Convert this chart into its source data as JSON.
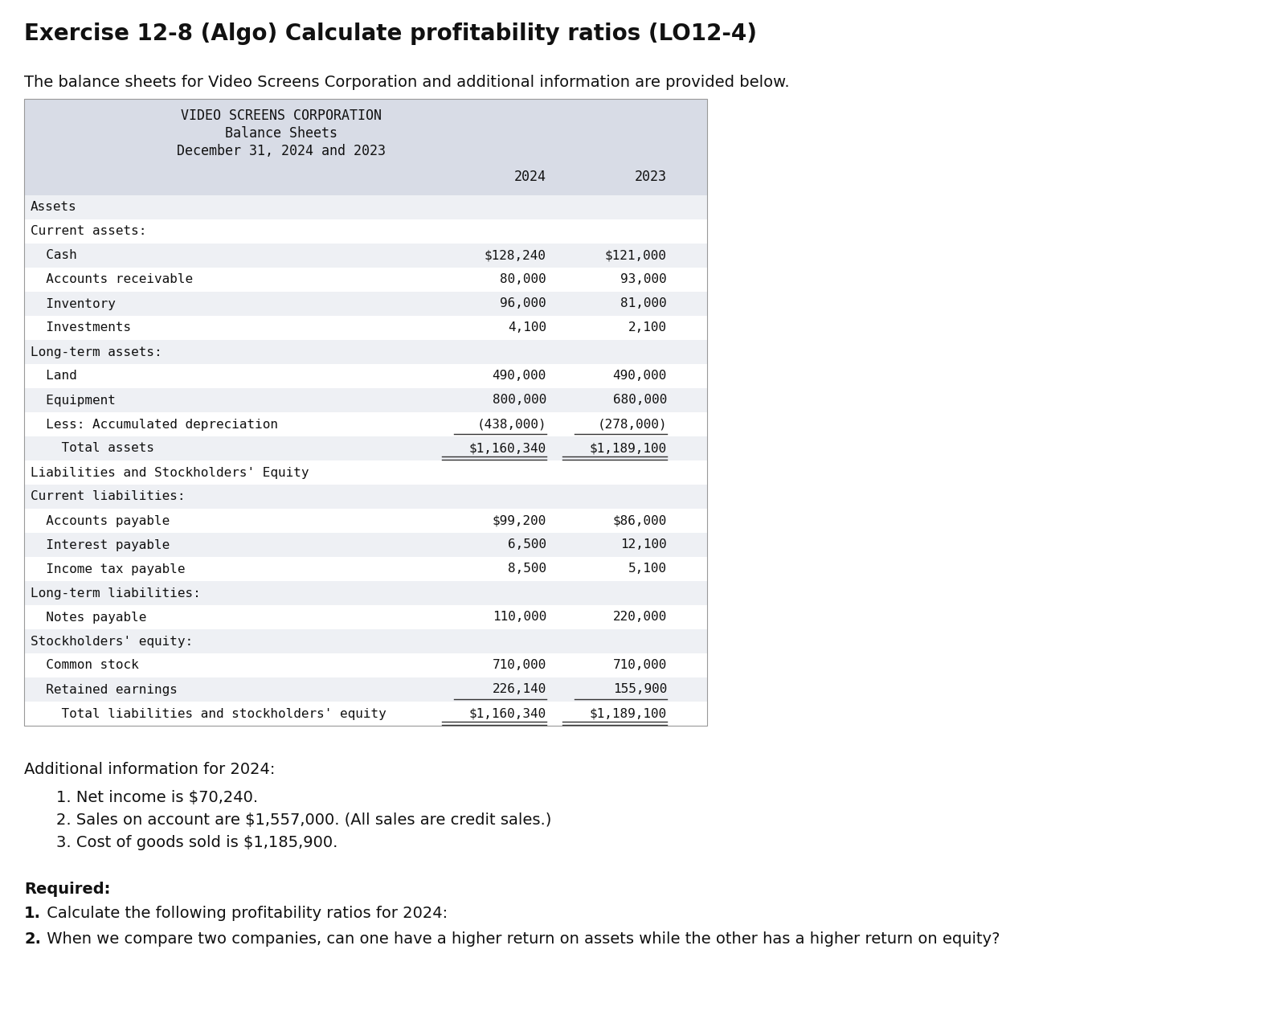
{
  "title": "Exercise 12-8 (Algo) Calculate profitability ratios (LO12-4)",
  "subtitle": "The balance sheets for Video Screens Corporation and additional information are provided below.",
  "table_header_line1": "VIDEO SCREENS CORPORATION",
  "table_header_line2": "Balance Sheets",
  "table_header_line3": "December 31, 2024 and 2023",
  "background_color": "#ffffff",
  "table_bg": "#d8dce6",
  "row_bg_alt": "#eef0f4",
  "row_bg_white": "#ffffff",
  "rows": [
    {
      "label": "Assets",
      "val2024": "",
      "val2023": "",
      "bg": "#eef0f4",
      "underline": false,
      "double_underline": false
    },
    {
      "label": "Current assets:",
      "val2024": "",
      "val2023": "",
      "bg": "#ffffff",
      "underline": false,
      "double_underline": false
    },
    {
      "label": "  Cash",
      "val2024": "$128,240",
      "val2023": "$121,000",
      "bg": "#eef0f4",
      "underline": false,
      "double_underline": false
    },
    {
      "label": "  Accounts receivable",
      "val2024": "80,000",
      "val2023": "93,000",
      "bg": "#ffffff",
      "underline": false,
      "double_underline": false
    },
    {
      "label": "  Inventory",
      "val2024": "96,000",
      "val2023": "81,000",
      "bg": "#eef0f4",
      "underline": false,
      "double_underline": false
    },
    {
      "label": "  Investments",
      "val2024": "4,100",
      "val2023": "2,100",
      "bg": "#ffffff",
      "underline": false,
      "double_underline": false
    },
    {
      "label": "Long-term assets:",
      "val2024": "",
      "val2023": "",
      "bg": "#eef0f4",
      "underline": false,
      "double_underline": false
    },
    {
      "label": "  Land",
      "val2024": "490,000",
      "val2023": "490,000",
      "bg": "#ffffff",
      "underline": false,
      "double_underline": false
    },
    {
      "label": "  Equipment",
      "val2024": "800,000",
      "val2023": "680,000",
      "bg": "#eef0f4",
      "underline": false,
      "double_underline": false
    },
    {
      "label": "  Less: Accumulated depreciation",
      "val2024": "(438,000)",
      "val2023": "(278,000)",
      "bg": "#ffffff",
      "underline": true,
      "double_underline": false
    },
    {
      "label": "    Total assets",
      "val2024": "$1,160,340",
      "val2023": "$1,189,100",
      "bg": "#eef0f4",
      "underline": false,
      "double_underline": true
    },
    {
      "label": "Liabilities and Stockholders' Equity",
      "val2024": "",
      "val2023": "",
      "bg": "#ffffff",
      "underline": false,
      "double_underline": false
    },
    {
      "label": "Current liabilities:",
      "val2024": "",
      "val2023": "",
      "bg": "#eef0f4",
      "underline": false,
      "double_underline": false
    },
    {
      "label": "  Accounts payable",
      "val2024": "$99,200",
      "val2023": "$86,000",
      "bg": "#ffffff",
      "underline": false,
      "double_underline": false
    },
    {
      "label": "  Interest payable",
      "val2024": "6,500",
      "val2023": "12,100",
      "bg": "#eef0f4",
      "underline": false,
      "double_underline": false
    },
    {
      "label": "  Income tax payable",
      "val2024": "8,500",
      "val2023": "5,100",
      "bg": "#ffffff",
      "underline": false,
      "double_underline": false
    },
    {
      "label": "Long-term liabilities:",
      "val2024": "",
      "val2023": "",
      "bg": "#eef0f4",
      "underline": false,
      "double_underline": false
    },
    {
      "label": "  Notes payable",
      "val2024": "110,000",
      "val2023": "220,000",
      "bg": "#ffffff",
      "underline": false,
      "double_underline": false
    },
    {
      "label": "Stockholders' equity:",
      "val2024": "",
      "val2023": "",
      "bg": "#eef0f4",
      "underline": false,
      "double_underline": false
    },
    {
      "label": "  Common stock",
      "val2024": "710,000",
      "val2023": "710,000",
      "bg": "#ffffff",
      "underline": false,
      "double_underline": false
    },
    {
      "label": "  Retained earnings",
      "val2024": "226,140",
      "val2023": "155,900",
      "bg": "#eef0f4",
      "underline": true,
      "double_underline": false
    },
    {
      "label": "    Total liabilities and stockholders' equity",
      "val2024": "$1,160,340",
      "val2023": "$1,189,100",
      "bg": "#ffffff",
      "underline": false,
      "double_underline": true
    }
  ],
  "additional_info_header": "Additional information for 2024:",
  "additional_info": [
    "1. Net income is $70,240.",
    "2. Sales on account are $1,557,000. (All sales are credit sales.)",
    "3. Cost of goods sold is $1,185,900."
  ],
  "required_label": "Required:",
  "required_items": [
    {
      "num": "1.",
      "text": " Calculate the following profitability ratios for 2024:"
    },
    {
      "num": "2.",
      "text": " When we compare two companies, can one have a higher return on assets while the other has a higher return on equity?"
    }
  ]
}
